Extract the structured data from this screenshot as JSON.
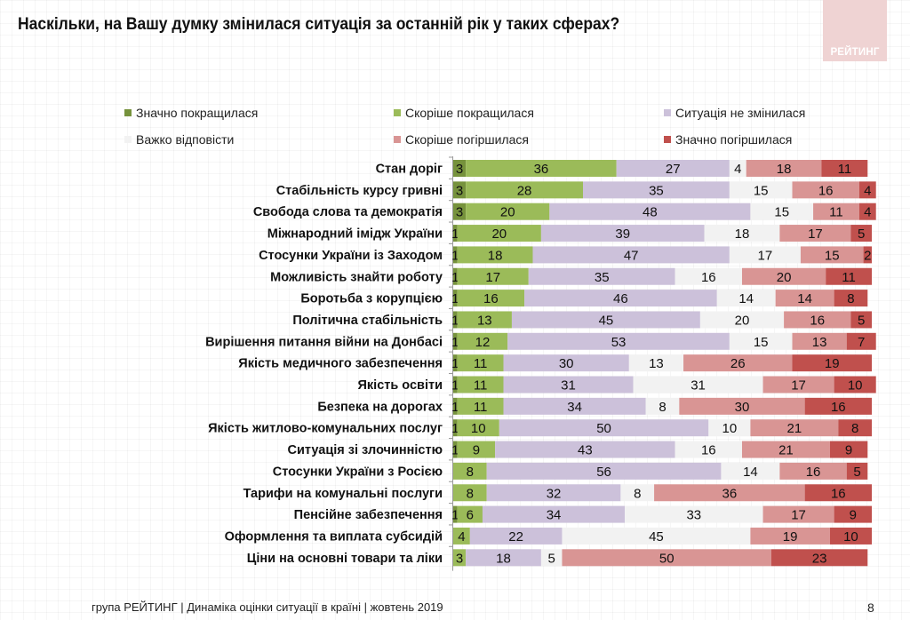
{
  "page": {
    "title": "Наскільки, на Вашу думку змінилася ситуація за останній рік у таких сферах?",
    "logo_text": "РЕЙТИНГ",
    "footer": "група РЕЙТИНГ |  Динаміка оцінки ситуації в країні  |  жовтень  2019",
    "page_number": "8"
  },
  "chart_data": {
    "type": "bar",
    "orientation": "horizontal",
    "stacked": true,
    "normalized": "percent",
    "title": "Наскільки, на Вашу думку змінилася ситуація за останній рік у таких сферах?",
    "xlabel": "",
    "ylabel": "",
    "xlim": [
      0,
      100
    ],
    "grid": false,
    "legend_position": "top",
    "categories": [
      "Стан доріг",
      "Стабільність курсу гривні",
      "Свобода слова та демократія",
      "Міжнародний імідж України",
      "Стосунки України із Заходом",
      "Можливість знайти роботу",
      "Боротьба з корупцією",
      "Політична стабільність",
      "Вирішення питання війни на Донбасі",
      "Якість медичного забезпечення",
      "Якість освіти",
      "Безпека на дорогах",
      "Якість житлово-комунальних послуг",
      "Ситуація зі злочинністю",
      "Стосунки України з Росією",
      "Тарифи на комунальні послуги",
      "Пенсійне забезпечення",
      "Оформлення та виплата субсидій",
      "Ціни на основні товари та ліки"
    ],
    "series": [
      {
        "name": "Значно покращилася",
        "color": "#76923c",
        "values": [
          3,
          3,
          3,
          1,
          1,
          1,
          1,
          1,
          1,
          1,
          1,
          1,
          1,
          1,
          0,
          0,
          1,
          0,
          0
        ]
      },
      {
        "name": "Скоріше покращилася",
        "color": "#9bbb59",
        "values": [
          36,
          28,
          20,
          20,
          18,
          17,
          16,
          13,
          12,
          11,
          11,
          11,
          10,
          9,
          8,
          8,
          6,
          4,
          3
        ]
      },
      {
        "name": "Ситуація не змінилася",
        "color": "#ccc1da",
        "values": [
          27,
          35,
          48,
          39,
          47,
          35,
          46,
          45,
          53,
          30,
          31,
          34,
          50,
          43,
          56,
          32,
          34,
          22,
          18
        ]
      },
      {
        "name": "Важко відповісти",
        "color": "#f2f2f2",
        "values": [
          4,
          15,
          15,
          18,
          17,
          16,
          14,
          20,
          15,
          13,
          31,
          8,
          10,
          16,
          14,
          8,
          33,
          45,
          5
        ]
      },
      {
        "name": "Скоріше погіршилася",
        "color": "#d99594",
        "values": [
          18,
          16,
          11,
          17,
          15,
          20,
          14,
          16,
          13,
          26,
          17,
          30,
          21,
          21,
          16,
          36,
          17,
          19,
          50
        ]
      },
      {
        "name": "Значно погіршилася",
        "color": "#c0504d",
        "values": [
          11,
          4,
          4,
          5,
          2,
          11,
          8,
          5,
          7,
          19,
          10,
          16,
          8,
          9,
          5,
          16,
          9,
          10,
          23
        ]
      }
    ]
  }
}
